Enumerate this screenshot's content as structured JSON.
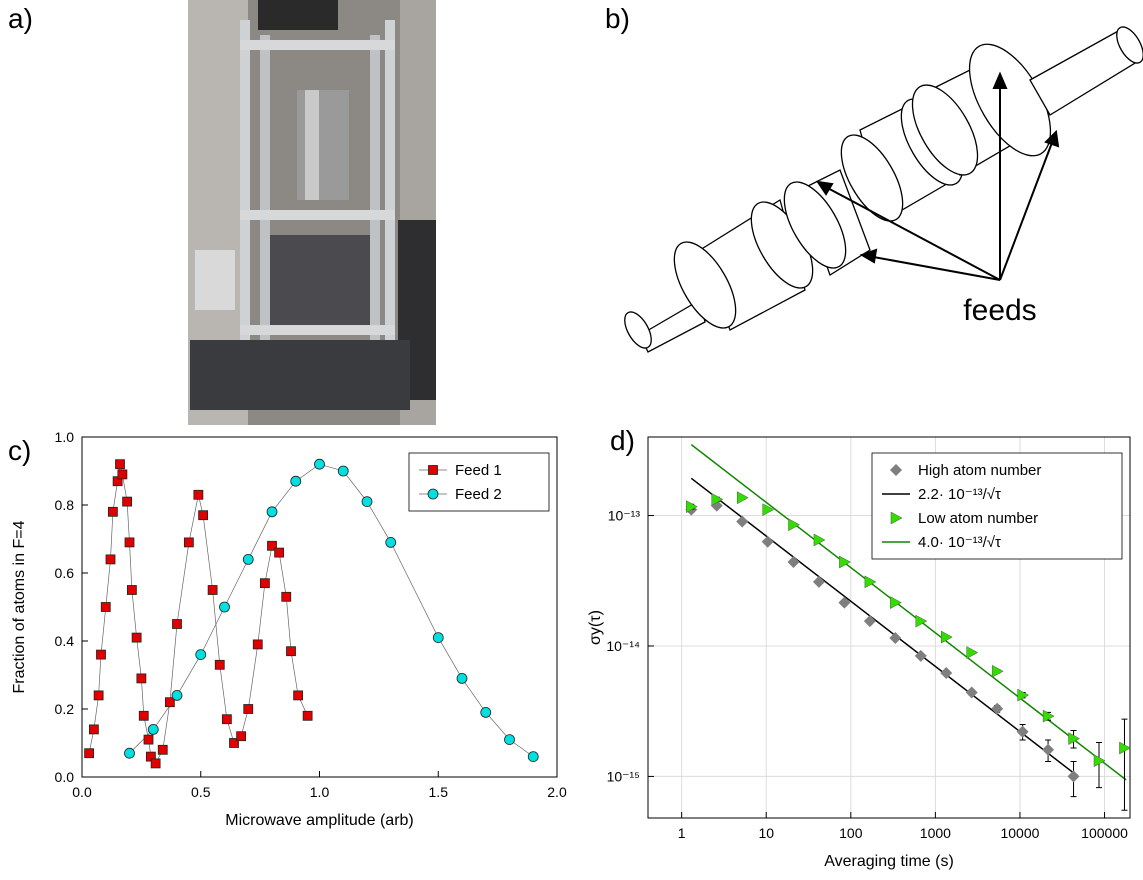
{
  "panel_labels": [
    "a)",
    "b)",
    "c)",
    "d)"
  ],
  "diagram": {
    "label": "feeds"
  },
  "chart_data": [
    {
      "type": "scatter",
      "xlabel": "Microwave amplitude (arb)",
      "ylabel": "Fraction of atoms in F=4",
      "xlim": [
        0,
        2
      ],
      "ylim": [
        0,
        1
      ],
      "xticks": [
        {
          "value": 0,
          "label": "0.0"
        },
        {
          "value": 0.5,
          "label": "0.5"
        },
        {
          "value": 1,
          "label": "1.0"
        },
        {
          "value": 1.5,
          "label": "1.5"
        },
        {
          "value": 2,
          "label": "2.0"
        }
      ],
      "yticks": [
        {
          "value": 0,
          "label": "0.0"
        },
        {
          "value": 0.2,
          "label": "0.2"
        },
        {
          "value": 0.4,
          "label": "0.4"
        },
        {
          "value": 0.6,
          "label": "0.6"
        },
        {
          "value": 0.8,
          "label": "0.8"
        },
        {
          "value": 1,
          "label": "1.0"
        }
      ],
      "legend": "upper right",
      "line_color": "#666666",
      "series": [
        {
          "name": "Feed 1",
          "color": "#e00000",
          "marker": "square",
          "x": [
            0.03,
            0.05,
            0.07,
            0.08,
            0.1,
            0.12,
            0.13,
            0.15,
            0.16,
            0.17,
            0.19,
            0.2,
            0.21,
            0.23,
            0.25,
            0.26,
            0.28,
            0.29,
            0.31,
            0.34,
            0.37,
            0.4,
            0.45,
            0.49,
            0.51,
            0.55,
            0.58,
            0.61,
            0.64,
            0.67,
            0.7,
            0.74,
            0.77,
            0.8,
            0.83,
            0.86,
            0.88,
            0.91,
            0.95
          ],
          "values": [
            0.07,
            0.14,
            0.24,
            0.36,
            0.5,
            0.64,
            0.78,
            0.87,
            0.92,
            0.89,
            0.81,
            0.69,
            0.55,
            0.41,
            0.29,
            0.18,
            0.11,
            0.06,
            0.04,
            0.08,
            0.22,
            0.45,
            0.69,
            0.83,
            0.77,
            0.55,
            0.33,
            0.17,
            0.1,
            0.12,
            0.2,
            0.39,
            0.57,
            0.68,
            0.66,
            0.53,
            0.37,
            0.24,
            0.18
          ]
        },
        {
          "name": "Feed 2",
          "color": "#00e0e0",
          "marker": "circle",
          "x": [
            0.2,
            0.3,
            0.4,
            0.5,
            0.6,
            0.7,
            0.8,
            0.9,
            1.0,
            1.1,
            1.2,
            1.3,
            1.5,
            1.6,
            1.7,
            1.8,
            1.9
          ],
          "values": [
            0.07,
            0.14,
            0.24,
            0.36,
            0.5,
            0.64,
            0.78,
            0.87,
            0.92,
            0.9,
            0.81,
            0.69,
            0.41,
            0.29,
            0.19,
            0.11,
            0.06
          ]
        }
      ]
    },
    {
      "type": "scatter",
      "xlabel": "Averaging time (s)",
      "ylabel": "σy(τ)",
      "log_x": true,
      "log_y": true,
      "grid": true,
      "xlim": [
        0.4,
        200000
      ],
      "ylim": [
        4.8e-16,
        4e-13
      ],
      "xticks": [
        1,
        10,
        100,
        1000,
        10000,
        100000
      ],
      "yticks": [
        {
          "value": 1e-15,
          "label": "10⁻¹⁵"
        },
        {
          "value": 1e-14,
          "label": "10⁻¹⁴"
        },
        {
          "value": 1e-13,
          "label": "10⁻¹³"
        }
      ],
      "legend": "upper right",
      "series": [
        {
          "name": "High atom number",
          "color": "#7f7f7f",
          "marker": "diamond",
          "x": [
            1.3,
            2.6,
            5.2,
            10.4,
            21,
            42,
            84,
            168,
            336,
            672,
            1344,
            2688,
            5376,
            10752,
            21504,
            43008
          ],
          "values": [
            1.11e-13,
            1.19e-13,
            9e-14,
            6.3e-14,
            4.4e-14,
            3.1e-14,
            2.15e-14,
            1.55e-14,
            1.15e-14,
            8.4e-15,
            6.2e-15,
            4.4e-15,
            3.3e-15,
            2.2e-15,
            1.6e-15,
            1e-15
          ],
          "errors": [
            5e-15,
            5e-15,
            3e-15,
            2e-15,
            1e-15,
            8e-16,
            5e-16,
            4e-16,
            3e-16,
            2e-16,
            2e-16,
            2e-16,
            2e-16,
            3e-16,
            3e-16,
            3e-16
          ]
        },
        {
          "name": "2.2· 10⁻¹³/√τ",
          "color": "#000000",
          "marker": "line",
          "x": [
            1.3,
            45000
          ],
          "values": [
            1.93e-13,
            1.04e-15
          ]
        },
        {
          "name": "Low atom number",
          "color": "#33dd00",
          "marker": "triangle",
          "x": [
            1.3,
            2.6,
            5.2,
            10.4,
            21,
            42,
            84,
            168,
            336,
            672,
            1344,
            2688,
            5376,
            10752,
            21504,
            43008,
            86016,
            172032
          ],
          "values": [
            1.17e-13,
            1.33e-13,
            1.37e-13,
            1.11e-13,
            8.5e-14,
            6.5e-14,
            4.4e-14,
            3.1e-14,
            2.15e-14,
            1.55e-14,
            1.17e-14,
            8.9e-15,
            6.4e-15,
            4.2e-15,
            2.9e-15,
            1.95e-15,
            1.32e-15,
            1.65e-15
          ],
          "errors": [
            5e-15,
            5e-15,
            4e-15,
            3e-15,
            2e-15,
            1.5e-15,
            1e-15,
            6e-16,
            4e-16,
            3e-16,
            2e-16,
            2e-16,
            2e-16,
            2e-16,
            2e-16,
            3e-16,
            5e-16,
            1.1e-15
          ]
        },
        {
          "name": "4.0· 10⁻¹³/√τ",
          "color": "#118800",
          "marker": "line",
          "x": [
            1.3,
            180000
          ],
          "values": [
            3.5e-13,
            9.4e-16
          ]
        }
      ]
    }
  ]
}
